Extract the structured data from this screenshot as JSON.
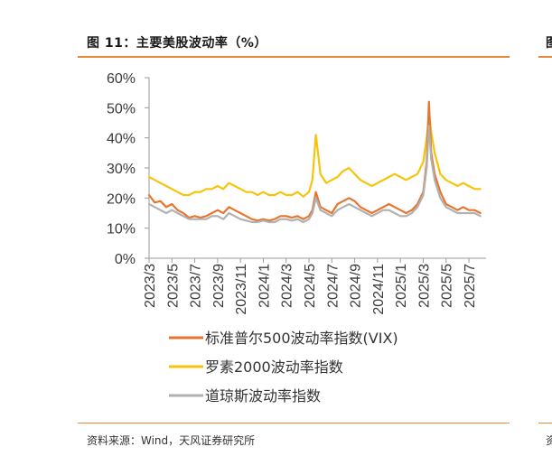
{
  "page": {
    "title": "图 11：主要美股波动率（%）",
    "next_title_fragment": "图",
    "source": "资料来源：Wind，天风证券研究所",
    "next_source_fragment": "资",
    "accent_color": "#e6893a"
  },
  "chart_data": {
    "type": "line",
    "title": "图 11：主要美股波动率（%）",
    "xlabel": "",
    "ylabel": "",
    "ylim": [
      0,
      60
    ],
    "yticks": [
      "0%",
      "10%",
      "20%",
      "30%",
      "40%",
      "50%",
      "60%"
    ],
    "xlim": [
      "2023-03",
      "2025-08"
    ],
    "xticks": [
      "2023/3",
      "2023/5",
      "2023/7",
      "2023/9",
      "2023/11",
      "2024/1",
      "2024/3",
      "2024/5",
      "2024/7",
      "2024/9",
      "2024/11",
      "2025/1",
      "2025/3",
      "2025/5",
      "2025/7"
    ],
    "grid": false,
    "legend_position": "bottom",
    "x_months": [
      0,
      0.5,
      1,
      1.5,
      2,
      2.5,
      3,
      3.5,
      4,
      4.5,
      5,
      5.5,
      6,
      6.5,
      7,
      7.5,
      8,
      8.5,
      9,
      9.5,
      10,
      10.5,
      11,
      11.5,
      12,
      12.5,
      13,
      13.5,
      14,
      14.3,
      14.6,
      15,
      15.5,
      16,
      16.5,
      17,
      17.5,
      18,
      18.5,
      19,
      19.5,
      20,
      20.5,
      21,
      21.5,
      22,
      22.5,
      23,
      23.5,
      24,
      24.3,
      24.5,
      24.7,
      25,
      25.5,
      26,
      26.5,
      27,
      27.5,
      28,
      28.5,
      29
    ],
    "series": [
      {
        "name": "标准普尔500波动率指数(VIX)",
        "color": "#e6762e",
        "values": [
          21,
          18.5,
          19,
          17,
          18,
          16,
          15,
          13.5,
          14,
          13.5,
          14,
          15,
          16,
          15,
          17,
          16,
          15,
          14,
          13,
          12.5,
          13,
          12.5,
          13,
          14,
          14,
          13.5,
          14,
          13,
          14,
          16,
          22,
          17,
          16,
          15,
          18,
          19,
          20,
          19,
          17,
          16,
          15,
          16,
          17,
          18,
          17,
          16,
          15,
          16,
          18,
          22,
          32,
          52,
          35,
          28,
          22,
          18,
          17,
          16,
          17,
          16,
          16,
          15
        ]
      },
      {
        "name": "罗素2000波动率指数",
        "color": "#f7c30b",
        "values": [
          27,
          26,
          25,
          24,
          23,
          22,
          21,
          21,
          22,
          22,
          23,
          23,
          24,
          23,
          25,
          24,
          23,
          22,
          22,
          21,
          22,
          21,
          21,
          22,
          21,
          21,
          22,
          20.5,
          22,
          26,
          41,
          28,
          25,
          26,
          27,
          29,
          30,
          28,
          26,
          25,
          24,
          25,
          26,
          27,
          28,
          27,
          26,
          27,
          28,
          32,
          40,
          48,
          42,
          35,
          28,
          26,
          25,
          24,
          25,
          24,
          23,
          23
        ]
      },
      {
        "name": "道琼斯波动率指数",
        "color": "#b1b1b1",
        "values": [
          18,
          17,
          16,
          15,
          16,
          15,
          14,
          13,
          13,
          13,
          13,
          14,
          14,
          13,
          15,
          14,
          13,
          12.5,
          12,
          12,
          12.5,
          12,
          12,
          13,
          13,
          12.5,
          13,
          12,
          13,
          15,
          20,
          16,
          15,
          14,
          16,
          17,
          18,
          17,
          16,
          15,
          14,
          15,
          16,
          16,
          15,
          14,
          14,
          15,
          17,
          21,
          30,
          44,
          33,
          26,
          20,
          17,
          16,
          15,
          15,
          15,
          15,
          14
        ]
      }
    ]
  }
}
